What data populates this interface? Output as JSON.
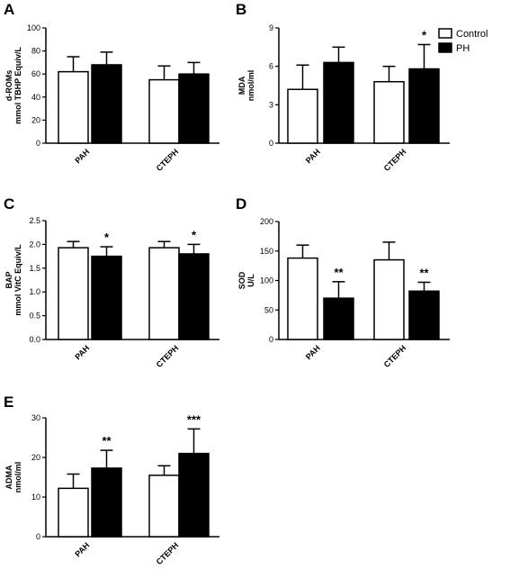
{
  "legend": [
    {
      "label": "Control",
      "fill": "#ffffff"
    },
    {
      "label": "PH",
      "fill": "#000000"
    }
  ],
  "chart_data": [
    {
      "panel": "A",
      "type": "bar",
      "categories": [
        "PAH",
        "CTEPH"
      ],
      "ylabel_lines": [
        "d-ROMs",
        "mmol TBHP Equiv/L"
      ],
      "ylim": [
        0,
        100
      ],
      "yticks": [
        "0",
        "20",
        "40",
        "60",
        "80",
        "100"
      ],
      "series": [
        {
          "name": "Control",
          "values": [
            62,
            55
          ],
          "errors": [
            13,
            12
          ],
          "sig": [
            "",
            ""
          ]
        },
        {
          "name": "PH",
          "values": [
            68,
            60
          ],
          "errors": [
            11,
            10
          ],
          "sig": [
            "",
            ""
          ]
        }
      ]
    },
    {
      "panel": "B",
      "type": "bar",
      "categories": [
        "PAH",
        "CTEPH"
      ],
      "ylabel_lines": [
        "MDA",
        "nmol/ml"
      ],
      "ylim": [
        0,
        9
      ],
      "yticks": [
        "0",
        "3",
        "6",
        "9"
      ],
      "series": [
        {
          "name": "Control",
          "values": [
            4.2,
            4.8
          ],
          "errors": [
            1.9,
            1.2
          ],
          "sig": [
            "",
            ""
          ]
        },
        {
          "name": "PH",
          "values": [
            6.3,
            5.8
          ],
          "errors": [
            1.2,
            1.9
          ],
          "sig": [
            "",
            "*"
          ]
        }
      ]
    },
    {
      "panel": "C",
      "type": "bar",
      "categories": [
        "PAH",
        "CTEPH"
      ],
      "ylabel_lines": [
        "BAP",
        "mmol VitC Equiv/L"
      ],
      "ylim": [
        0,
        2.5
      ],
      "yticks": [
        "0.0",
        "0.5",
        "1.0",
        "1.5",
        "2.0",
        "2.5"
      ],
      "series": [
        {
          "name": "Control",
          "values": [
            1.93,
            1.93
          ],
          "errors": [
            0.13,
            0.13
          ],
          "sig": [
            "",
            ""
          ]
        },
        {
          "name": "PH",
          "values": [
            1.75,
            1.8
          ],
          "errors": [
            0.2,
            0.2
          ],
          "sig": [
            "*",
            "*"
          ]
        }
      ]
    },
    {
      "panel": "D",
      "type": "bar",
      "categories": [
        "PAH",
        "CTEPH"
      ],
      "ylabel_lines": [
        "SOD",
        "U/L"
      ],
      "ylim": [
        0,
        200
      ],
      "yticks": [
        "0",
        "50",
        "100",
        "150",
        "200"
      ],
      "series": [
        {
          "name": "Control",
          "values": [
            138,
            135
          ],
          "errors": [
            22,
            30
          ],
          "sig": [
            "",
            ""
          ]
        },
        {
          "name": "PH",
          "values": [
            70,
            82
          ],
          "errors": [
            28,
            15
          ],
          "sig": [
            "**",
            "**"
          ]
        }
      ]
    },
    {
      "panel": "E",
      "type": "bar",
      "categories": [
        "PAH",
        "CTEPH"
      ],
      "ylabel_lines": [
        "ADMA",
        "nmol/ml"
      ],
      "ylim": [
        0,
        30
      ],
      "yticks": [
        "0",
        "10",
        "20",
        "30"
      ],
      "series": [
        {
          "name": "Control",
          "values": [
            12.2,
            15.5
          ],
          "errors": [
            3.6,
            2.4
          ],
          "sig": [
            "",
            ""
          ]
        },
        {
          "name": "PH",
          "values": [
            17.3,
            21
          ],
          "errors": [
            4.5,
            6.2
          ],
          "sig": [
            "**",
            "***"
          ]
        }
      ]
    }
  ]
}
